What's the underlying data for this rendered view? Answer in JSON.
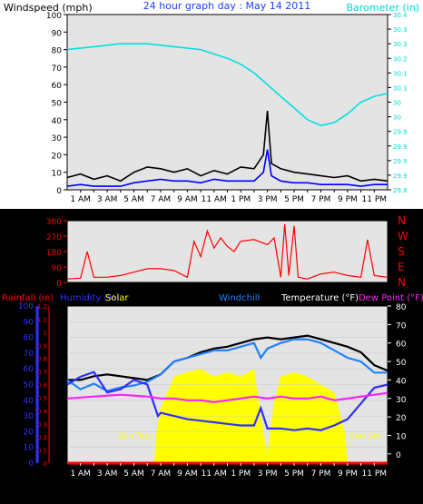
{
  "chart_data": [
    {
      "type": "line",
      "title": "24 hour graph day : May 14 2011",
      "ylabel_left": "Windspeed (mph)",
      "ylabel_right": "Barometer (in)",
      "ylim_left": [
        0,
        100
      ],
      "ylim_right": [
        29.8,
        30.4
      ],
      "yticks_left": [
        "0",
        "10",
        "20",
        "30",
        "40",
        "50",
        "60",
        "70",
        "80",
        "90",
        "100"
      ],
      "yticks_right": [
        "29.8",
        "29.9",
        "29.9",
        "29.9",
        "29.9",
        "30",
        "30",
        "30.1",
        "30.1",
        "30.2",
        "30.3",
        "30.3",
        "30.4"
      ],
      "x_hours_range": [
        0,
        24
      ],
      "xticks": [
        {
          "h": 1,
          "label": "1 AM"
        },
        {
          "h": 3,
          "label": "3 AM"
        },
        {
          "h": 5,
          "label": "5 AM"
        },
        {
          "h": 7,
          "label": "7 AM"
        },
        {
          "h": 9,
          "label": "9 AM"
        },
        {
          "h": 11,
          "label": "11 AM"
        },
        {
          "h": 13,
          "label": "1 PM"
        },
        {
          "h": 15,
          "label": "3 PM"
        },
        {
          "h": 17,
          "label": "5 PM"
        },
        {
          "h": 19,
          "label": "7 PM"
        },
        {
          "h": 21,
          "label": "9 PM"
        },
        {
          "h": 23,
          "label": "11 PM"
        }
      ],
      "series": [
        {
          "color": "#00e0e0",
          "axis": "right",
          "points": [
            [
              0,
              30.28
            ],
            [
              2,
              30.29
            ],
            [
              4,
              30.3
            ],
            [
              6,
              30.3
            ],
            [
              8,
              30.29
            ],
            [
              10,
              30.28
            ],
            [
              12,
              30.25
            ],
            [
              13,
              30.23
            ],
            [
              14,
              30.2
            ],
            [
              15,
              30.16
            ],
            [
              16,
              30.12
            ],
            [
              17,
              30.08
            ],
            [
              18,
              30.04
            ],
            [
              19,
              30.02
            ],
            [
              20,
              30.03
            ],
            [
              21,
              30.06
            ],
            [
              22,
              30.1
            ],
            [
              23,
              30.12
            ],
            [
              24,
              30.13
            ]
          ]
        },
        {
          "color": "#000000",
          "axis": "left",
          "points": [
            [
              0,
              7
            ],
            [
              1,
              9
            ],
            [
              2,
              6
            ],
            [
              3,
              8
            ],
            [
              4,
              5
            ],
            [
              5,
              10
            ],
            [
              6,
              13
            ],
            [
              7,
              12
            ],
            [
              8,
              10
            ],
            [
              9,
              12
            ],
            [
              10,
              8
            ],
            [
              11,
              11
            ],
            [
              12,
              9
            ],
            [
              13,
              13
            ],
            [
              14,
              12
            ],
            [
              14.7,
              20
            ],
            [
              15,
              45
            ],
            [
              15.3,
              15
            ],
            [
              16,
              12
            ],
            [
              17,
              10
            ],
            [
              18,
              9
            ],
            [
              19,
              8
            ],
            [
              20,
              7
            ],
            [
              21,
              8
            ],
            [
              22,
              5
            ],
            [
              23,
              6
            ],
            [
              24,
              5
            ]
          ]
        },
        {
          "color": "#0000ff",
          "axis": "left",
          "points": [
            [
              0,
              2
            ],
            [
              1,
              3
            ],
            [
              2,
              2
            ],
            [
              3,
              2
            ],
            [
              4,
              2
            ],
            [
              5,
              4
            ],
            [
              6,
              5
            ],
            [
              7,
              6
            ],
            [
              8,
              5
            ],
            [
              9,
              5
            ],
            [
              10,
              4
            ],
            [
              11,
              6
            ],
            [
              12,
              5
            ],
            [
              13,
              5
            ],
            [
              14,
              5
            ],
            [
              14.7,
              10
            ],
            [
              15,
              23
            ],
            [
              15.3,
              8
            ],
            [
              16,
              5
            ],
            [
              17,
              4
            ],
            [
              18,
              4
            ],
            [
              19,
              3
            ],
            [
              20,
              3
            ],
            [
              21,
              3
            ],
            [
              22,
              2
            ],
            [
              23,
              3
            ],
            [
              24,
              3
            ]
          ]
        }
      ]
    },
    {
      "type": "line",
      "ylabel_right": [
        "N",
        "W",
        "S",
        "E",
        "N"
      ],
      "ylim": [
        0,
        360
      ],
      "yticks": [
        "0",
        "90",
        "180",
        "270",
        "360"
      ],
      "series": [
        {
          "color": "#ff0000",
          "axis": "left",
          "points": [
            [
              0,
              20
            ],
            [
              1,
              25
            ],
            [
              1.5,
              180
            ],
            [
              2,
              30
            ],
            [
              3,
              30
            ],
            [
              4,
              40
            ],
            [
              5,
              60
            ],
            [
              6,
              80
            ],
            [
              7,
              80
            ],
            [
              8,
              70
            ],
            [
              9,
              30
            ],
            [
              9.5,
              240
            ],
            [
              10,
              150
            ],
            [
              10.5,
              300
            ],
            [
              11,
              200
            ],
            [
              11.5,
              260
            ],
            [
              12,
              210
            ],
            [
              12.5,
              180
            ],
            [
              13,
              240
            ],
            [
              14,
              250
            ],
            [
              15,
              220
            ],
            [
              15.5,
              260
            ],
            [
              16,
              30
            ],
            [
              16.3,
              340
            ],
            [
              16.6,
              40
            ],
            [
              17,
              330
            ],
            [
              17.3,
              30
            ],
            [
              18,
              20
            ],
            [
              19,
              50
            ],
            [
              20,
              60
            ],
            [
              21,
              40
            ],
            [
              22,
              30
            ],
            [
              22.5,
              250
            ],
            [
              23,
              40
            ],
            [
              24,
              30
            ]
          ]
        }
      ]
    },
    {
      "type": "line",
      "legend": [
        {
          "label": "Rainfall (in)",
          "color": "#ff0000"
        },
        {
          "label": "Humidity (%)",
          "color": "#3030ff"
        },
        {
          "label": "Solar",
          "color": "#ffff00"
        },
        {
          "label": "Windchill",
          "color": "#2080ff"
        },
        {
          "label": "Temperature (°F)",
          "color": "#ffffff"
        },
        {
          "label": "Dew Point (°F)",
          "color": "#ff20ff"
        }
      ],
      "ylim_rain": [
        0,
        1.2
      ],
      "yticks_rain": [
        "0",
        "0.1",
        "0.2",
        "0.3",
        "0.4",
        "0.5",
        "0.6",
        "0.7",
        "0.8",
        "0.9",
        "1",
        "1.1",
        "1.2"
      ],
      "ylim_humidity": [
        0,
        100
      ],
      "yticks_humidity": [
        "0",
        "10",
        "20",
        "30",
        "40",
        "50",
        "60",
        "70",
        "80",
        "90",
        "100"
      ],
      "ylim_temp": [
        -5,
        80
      ],
      "yticks_temp": [
        "0",
        "10",
        "20",
        "30",
        "40",
        "50",
        "60",
        "70",
        "80"
      ],
      "annotations": [
        {
          "text": "Sun Rise",
          "h": 6.6
        },
        {
          "text": "Sun Set",
          "h": 21
        }
      ],
      "sun_rise_h": 6.6,
      "sun_set_h": 21,
      "series": [
        {
          "name": "Solar",
          "color": "#ffff00",
          "axis": "humidity",
          "fill": true,
          "points": [
            [
              6.5,
              0
            ],
            [
              6.7,
              20
            ],
            [
              7,
              35
            ],
            [
              8,
              55
            ],
            [
              9,
              58
            ],
            [
              10,
              60
            ],
            [
              11,
              55
            ],
            [
              12,
              58
            ],
            [
              13,
              55
            ],
            [
              14,
              60
            ],
            [
              14.5,
              30
            ],
            [
              15,
              5
            ],
            [
              15.5,
              40
            ],
            [
              16,
              55
            ],
            [
              17,
              58
            ],
            [
              18,
              55
            ],
            [
              19,
              50
            ],
            [
              20,
              45
            ],
            [
              20.8,
              20
            ],
            [
              21,
              0
            ]
          ]
        },
        {
          "name": "Temperature (°F)",
          "color": "#000000",
          "axis": "temp",
          "points": [
            [
              0,
              40
            ],
            [
              1,
              40
            ],
            [
              2,
              42
            ],
            [
              3,
              43
            ],
            [
              4,
              42
            ],
            [
              5,
              41
            ],
            [
              6,
              40
            ],
            [
              7,
              43
            ],
            [
              8,
              50
            ],
            [
              9,
              52
            ],
            [
              10,
              55
            ],
            [
              11,
              57
            ],
            [
              12,
              58
            ],
            [
              13,
              60
            ],
            [
              14,
              62
            ],
            [
              15,
              63
            ],
            [
              16,
              62
            ],
            [
              17,
              63
            ],
            [
              18,
              64
            ],
            [
              19,
              62
            ],
            [
              20,
              60
            ],
            [
              21,
              58
            ],
            [
              22,
              55
            ],
            [
              23,
              48
            ],
            [
              24,
              45
            ]
          ]
        },
        {
          "name": "Windchill",
          "color": "#2080ff",
          "axis": "temp",
          "points": [
            [
              0,
              40
            ],
            [
              1,
              35
            ],
            [
              2,
              38
            ],
            [
              3,
              34
            ],
            [
              4,
              36
            ],
            [
              5,
              37
            ],
            [
              6,
              39
            ],
            [
              7,
              43
            ],
            [
              8,
              50
            ],
            [
              9,
              52
            ],
            [
              10,
              54
            ],
            [
              11,
              56
            ],
            [
              12,
              56
            ],
            [
              13,
              58
            ],
            [
              14,
              60
            ],
            [
              14.5,
              52
            ],
            [
              15,
              57
            ],
            [
              16,
              60
            ],
            [
              17,
              62
            ],
            [
              18,
              62
            ],
            [
              19,
              60
            ],
            [
              20,
              56
            ],
            [
              21,
              52
            ],
            [
              22,
              50
            ],
            [
              23,
              44
            ],
            [
              24,
              44
            ]
          ]
        },
        {
          "name": "Humidity (%)",
          "color": "#3030ff",
          "axis": "humidity",
          "points": [
            [
              0,
              50
            ],
            [
              1,
              55
            ],
            [
              2,
              58
            ],
            [
              3,
              45
            ],
            [
              4,
              47
            ],
            [
              5,
              53
            ],
            [
              6,
              50
            ],
            [
              6.8,
              30
            ],
            [
              7,
              32
            ],
            [
              8,
              30
            ],
            [
              9,
              28
            ],
            [
              10,
              27
            ],
            [
              11,
              26
            ],
            [
              12,
              25
            ],
            [
              13,
              24
            ],
            [
              14,
              24
            ],
            [
              14.5,
              35
            ],
            [
              15,
              22
            ],
            [
              16,
              22
            ],
            [
              17,
              21
            ],
            [
              18,
              22
            ],
            [
              19,
              21
            ],
            [
              20,
              24
            ],
            [
              21,
              28
            ],
            [
              22,
              38
            ],
            [
              23,
              48
            ],
            [
              24,
              50
            ]
          ]
        },
        {
          "name": "Dew Point (°F)",
          "color": "#ff20ff",
          "axis": "temp",
          "points": [
            [
              0,
              30
            ],
            [
              2,
              31
            ],
            [
              4,
              32
            ],
            [
              6,
              31
            ],
            [
              7,
              30
            ],
            [
              8,
              30
            ],
            [
              9,
              29
            ],
            [
              10,
              29
            ],
            [
              11,
              28
            ],
            [
              12,
              29
            ],
            [
              13,
              30
            ],
            [
              14,
              31
            ],
            [
              15,
              30
            ],
            [
              16,
              31
            ],
            [
              17,
              30
            ],
            [
              18,
              30
            ],
            [
              19,
              31
            ],
            [
              20,
              29
            ],
            [
              21,
              30
            ],
            [
              22,
              31
            ],
            [
              23,
              32
            ],
            [
              24,
              33
            ]
          ]
        },
        {
          "name": "Rainfall (in)",
          "color": "#ff0000",
          "axis": "rain",
          "points": [
            [
              0,
              0
            ],
            [
              24,
              0
            ]
          ]
        }
      ]
    }
  ]
}
